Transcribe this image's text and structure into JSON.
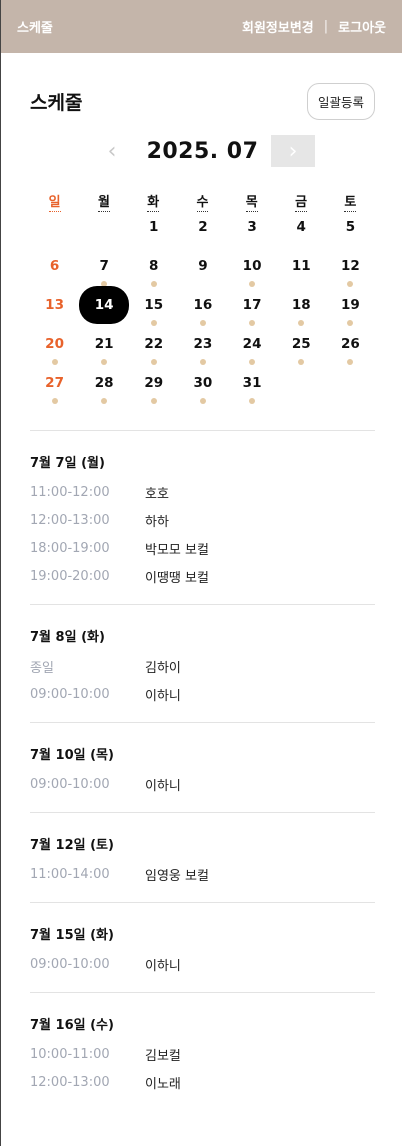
{
  "header": {
    "brand": "스케줄",
    "profile_link": "회원정보변경",
    "separator": "|",
    "logout_link": "로그아웃"
  },
  "page": {
    "title": "스케줄",
    "bulk_button": "일괄등록"
  },
  "calendar": {
    "month_label": "2025. 07",
    "prev": "‹",
    "next": "›",
    "weekdays": [
      "일",
      "월",
      "화",
      "수",
      "목",
      "금",
      "토"
    ],
    "leading_blanks": 2,
    "selected_day": 14,
    "days": [
      {
        "day": "1",
        "dot": false
      },
      {
        "day": "2",
        "dot": false
      },
      {
        "day": "3",
        "dot": false
      },
      {
        "day": "4",
        "dot": false
      },
      {
        "day": "5",
        "dot": false
      },
      {
        "day": "6",
        "dot": false
      },
      {
        "day": "7",
        "dot": true
      },
      {
        "day": "8",
        "dot": true
      },
      {
        "day": "9",
        "dot": false
      },
      {
        "day": "10",
        "dot": true
      },
      {
        "day": "11",
        "dot": false
      },
      {
        "day": "12",
        "dot": true
      },
      {
        "day": "13",
        "dot": false
      },
      {
        "day": "14",
        "dot": false
      },
      {
        "day": "15",
        "dot": true
      },
      {
        "day": "16",
        "dot": true
      },
      {
        "day": "17",
        "dot": true
      },
      {
        "day": "18",
        "dot": true
      },
      {
        "day": "19",
        "dot": true
      },
      {
        "day": "20",
        "dot": true
      },
      {
        "day": "21",
        "dot": true
      },
      {
        "day": "22",
        "dot": true
      },
      {
        "day": "23",
        "dot": true
      },
      {
        "day": "24",
        "dot": true
      },
      {
        "day": "25",
        "dot": true
      },
      {
        "day": "26",
        "dot": true
      },
      {
        "day": "27",
        "dot": true
      },
      {
        "day": "28",
        "dot": true
      },
      {
        "day": "29",
        "dot": true
      },
      {
        "day": "30",
        "dot": true
      },
      {
        "day": "31",
        "dot": true
      }
    ]
  },
  "schedule": [
    {
      "date": "7월 7일 (월)",
      "items": [
        {
          "time": "11:00-12:00",
          "name": "호호"
        },
        {
          "time": "12:00-13:00",
          "name": "하하"
        },
        {
          "time": "18:00-19:00",
          "name": "박모모 보컬"
        },
        {
          "time": "19:00-20:00",
          "name": "이땡땡 보컬"
        }
      ]
    },
    {
      "date": "7월 8일 (화)",
      "items": [
        {
          "time": "종일",
          "name": "김하이"
        },
        {
          "time": "09:00-10:00",
          "name": "이하니"
        }
      ]
    },
    {
      "date": "7월 10일 (목)",
      "items": [
        {
          "time": "09:00-10:00",
          "name": "이하니"
        }
      ]
    },
    {
      "date": "7월 12일 (토)",
      "items": [
        {
          "time": "11:00-14:00",
          "name": "임영웅 보컬"
        }
      ]
    },
    {
      "date": "7월 15일 (화)",
      "items": [
        {
          "time": "09:00-10:00",
          "name": "이하니"
        }
      ]
    },
    {
      "date": "7월 16일 (수)",
      "items": [
        {
          "time": "10:00-11:00",
          "name": "김보컬"
        },
        {
          "time": "12:00-13:00",
          "name": "이노래"
        }
      ]
    }
  ],
  "colors": {
    "header_bg": "#c4b5aa",
    "sunday": "#e8622b",
    "dot": "#e3c9a3",
    "time_text": "#a2a7b3"
  }
}
